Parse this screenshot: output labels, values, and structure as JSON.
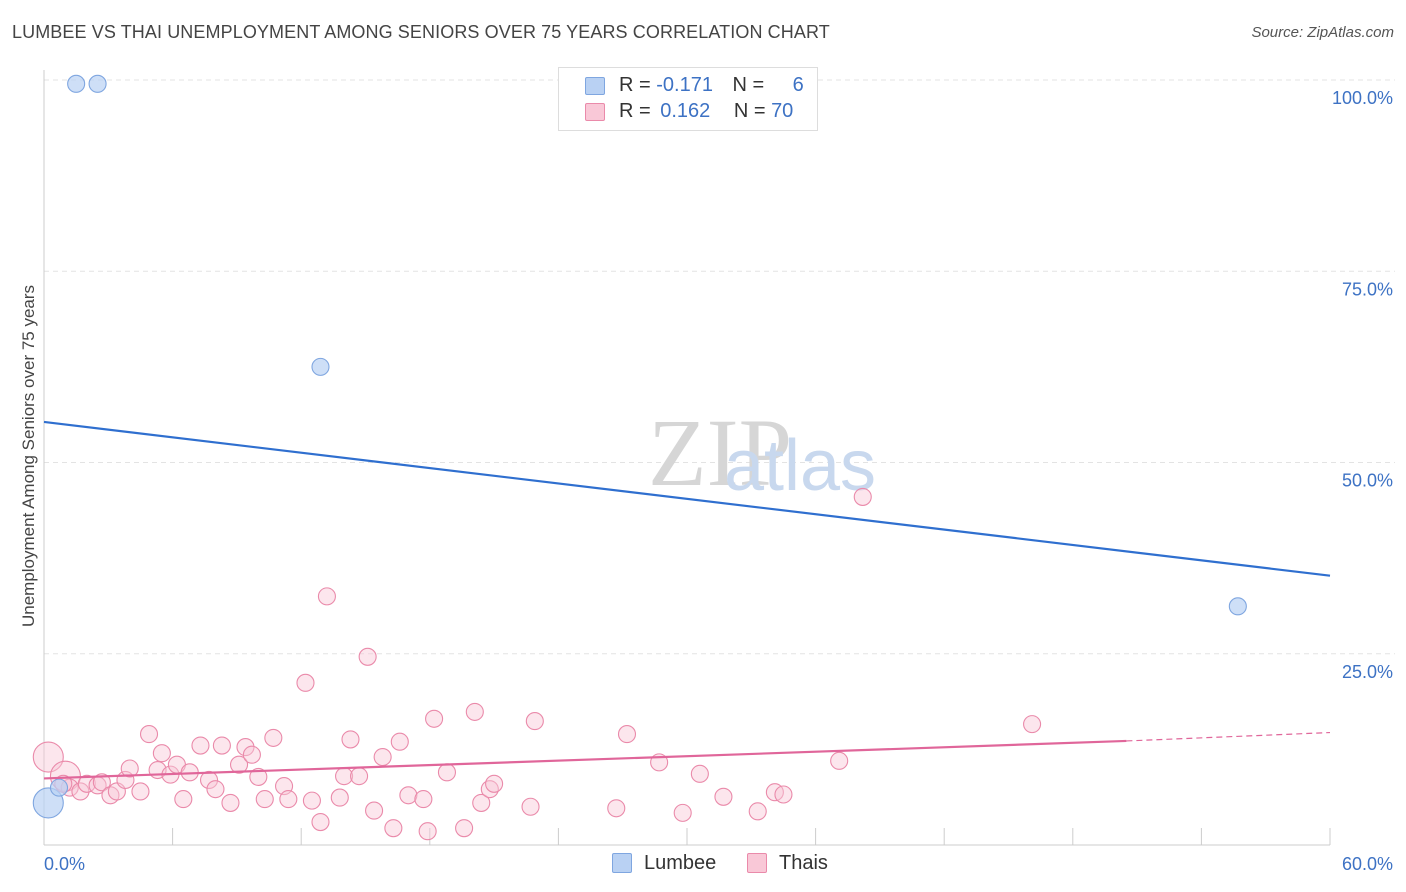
{
  "title": "LUMBEE VS THAI UNEMPLOYMENT AMONG SENIORS OVER 75 YEARS CORRELATION CHART",
  "source": "Source: ZipAtlas.com",
  "watermark": {
    "zip": "ZIP",
    "atlas": "atlas"
  },
  "colors": {
    "lumbee_fill": "#b9d1f3",
    "lumbee_stroke": "#7fa6e0",
    "lumbee_line": "#2f6fcf",
    "thai_fill": "#f9c8d7",
    "thai_stroke": "#ea8aaa",
    "thai_line": "#e0669a",
    "tick_label": "#3d72c4",
    "grid": "#e3e3e3"
  },
  "legend": {
    "rows": [
      {
        "r_label": "R = ",
        "r_value": "-0.171",
        "n_label": "N = ",
        "n_value": "6"
      },
      {
        "r_label": "R = ",
        "r_value": "0.162",
        "n_label": "N = ",
        "n_value": "70"
      }
    ]
  },
  "chart_data": {
    "type": "scatter",
    "title": "LUMBEE VS THAI UNEMPLOYMENT AMONG SENIORS OVER 75 YEARS CORRELATION CHART",
    "xlabel": "",
    "ylabel": "Unemployment Among Seniors over 75 years",
    "xlim": [
      0,
      60
    ],
    "ylim": [
      0,
      100
    ],
    "x_tick_labels": [
      "0.0%",
      "60.0%"
    ],
    "y_ticks": [
      25,
      50,
      75,
      100
    ],
    "y_tick_labels": [
      "25.0%",
      "50.0%",
      "75.0%",
      "100.0%"
    ],
    "grid": true,
    "legend_position": "top-center",
    "series": [
      {
        "name": "Lumbee",
        "r": -0.171,
        "n": 6,
        "trend": {
          "x": [
            0,
            60
          ],
          "y": [
            55.3,
            35.2
          ]
        },
        "points": [
          {
            "x": 0.2,
            "y": 5.5,
            "s": 2
          },
          {
            "x": 0.7,
            "y": 7.5,
            "s": 1
          },
          {
            "x": 1.5,
            "y": 99.5,
            "s": 1
          },
          {
            "x": 2.5,
            "y": 99.5,
            "s": 1
          },
          {
            "x": 12.9,
            "y": 62.5,
            "s": 1
          },
          {
            "x": 55.7,
            "y": 31.2,
            "s": 1
          }
        ]
      },
      {
        "name": "Thais",
        "r": 0.162,
        "n": 70,
        "trend": {
          "x": [
            0,
            50.5
          ],
          "y": [
            8.7,
            13.6
          ]
        },
        "trend_dashed": {
          "x": [
            50.5,
            60
          ],
          "y": [
            13.6,
            14.7
          ]
        },
        "points": [
          {
            "x": 0.2,
            "y": 11.5,
            "s": 2
          },
          {
            "x": 1.0,
            "y": 9.0,
            "s": 2
          },
          {
            "x": 1.2,
            "y": 7.5,
            "s": 1
          },
          {
            "x": 0.9,
            "y": 8.0,
            "s": 1
          },
          {
            "x": 1.7,
            "y": 7.0,
            "s": 1
          },
          {
            "x": 2.0,
            "y": 8.0,
            "s": 1
          },
          {
            "x": 2.5,
            "y": 7.8,
            "s": 1
          },
          {
            "x": 2.7,
            "y": 8.2,
            "s": 1
          },
          {
            "x": 3.1,
            "y": 6.5,
            "s": 1
          },
          {
            "x": 3.4,
            "y": 7.0,
            "s": 1
          },
          {
            "x": 3.8,
            "y": 8.5,
            "s": 1
          },
          {
            "x": 4.0,
            "y": 10.0,
            "s": 1
          },
          {
            "x": 4.5,
            "y": 7.0,
            "s": 1
          },
          {
            "x": 4.9,
            "y": 14.5,
            "s": 1
          },
          {
            "x": 5.3,
            "y": 9.8,
            "s": 1
          },
          {
            "x": 5.5,
            "y": 12.0,
            "s": 1
          },
          {
            "x": 5.9,
            "y": 9.2,
            "s": 1
          },
          {
            "x": 6.2,
            "y": 10.5,
            "s": 1
          },
          {
            "x": 6.5,
            "y": 6.0,
            "s": 1
          },
          {
            "x": 6.8,
            "y": 9.5,
            "s": 1
          },
          {
            "x": 7.3,
            "y": 13.0,
            "s": 1
          },
          {
            "x": 7.7,
            "y": 8.5,
            "s": 1
          },
          {
            "x": 8.0,
            "y": 7.3,
            "s": 1
          },
          {
            "x": 8.3,
            "y": 13.0,
            "s": 1
          },
          {
            "x": 8.7,
            "y": 5.5,
            "s": 1
          },
          {
            "x": 9.1,
            "y": 10.5,
            "s": 1
          },
          {
            "x": 9.4,
            "y": 12.8,
            "s": 1
          },
          {
            "x": 9.7,
            "y": 11.8,
            "s": 1
          },
          {
            "x": 10.0,
            "y": 8.9,
            "s": 1
          },
          {
            "x": 10.3,
            "y": 6.0,
            "s": 1
          },
          {
            "x": 10.7,
            "y": 14.0,
            "s": 1
          },
          {
            "x": 11.2,
            "y": 7.7,
            "s": 1
          },
          {
            "x": 11.4,
            "y": 6.0,
            "s": 1
          },
          {
            "x": 12.2,
            "y": 21.2,
            "s": 1
          },
          {
            "x": 12.5,
            "y": 5.8,
            "s": 1
          },
          {
            "x": 12.9,
            "y": 3.0,
            "s": 1
          },
          {
            "x": 13.2,
            "y": 32.5,
            "s": 1
          },
          {
            "x": 13.8,
            "y": 6.2,
            "s": 1
          },
          {
            "x": 14.0,
            "y": 9.0,
            "s": 1
          },
          {
            "x": 14.3,
            "y": 13.8,
            "s": 1
          },
          {
            "x": 14.7,
            "y": 9.0,
            "s": 1
          },
          {
            "x": 15.1,
            "y": 24.6,
            "s": 1
          },
          {
            "x": 15.4,
            "y": 4.5,
            "s": 1
          },
          {
            "x": 15.8,
            "y": 11.5,
            "s": 1
          },
          {
            "x": 16.3,
            "y": 2.2,
            "s": 1
          },
          {
            "x": 16.6,
            "y": 13.5,
            "s": 1
          },
          {
            "x": 17.0,
            "y": 6.5,
            "s": 1
          },
          {
            "x": 17.7,
            "y": 6.0,
            "s": 1
          },
          {
            "x": 17.9,
            "y": 1.8,
            "s": 1
          },
          {
            "x": 18.2,
            "y": 16.5,
            "s": 1
          },
          {
            "x": 18.8,
            "y": 9.5,
            "s": 1
          },
          {
            "x": 19.6,
            "y": 2.2,
            "s": 1
          },
          {
            "x": 20.1,
            "y": 17.4,
            "s": 1
          },
          {
            "x": 20.4,
            "y": 5.5,
            "s": 1
          },
          {
            "x": 20.8,
            "y": 7.3,
            "s": 1
          },
          {
            "x": 21.0,
            "y": 8.0,
            "s": 1
          },
          {
            "x": 22.7,
            "y": 5.0,
            "s": 1
          },
          {
            "x": 22.9,
            "y": 16.2,
            "s": 1
          },
          {
            "x": 26.7,
            "y": 4.8,
            "s": 1
          },
          {
            "x": 27.2,
            "y": 14.5,
            "s": 1
          },
          {
            "x": 28.7,
            "y": 10.8,
            "s": 1
          },
          {
            "x": 29.8,
            "y": 4.2,
            "s": 1
          },
          {
            "x": 30.6,
            "y": 9.3,
            "s": 1
          },
          {
            "x": 31.7,
            "y": 6.3,
            "s": 1
          },
          {
            "x": 33.3,
            "y": 4.4,
            "s": 1
          },
          {
            "x": 34.1,
            "y": 6.9,
            "s": 1
          },
          {
            "x": 34.5,
            "y": 6.6,
            "s": 1
          },
          {
            "x": 37.1,
            "y": 11.0,
            "s": 1
          },
          {
            "x": 38.2,
            "y": 45.5,
            "s": 1
          },
          {
            "x": 46.1,
            "y": 15.8,
            "s": 1
          }
        ]
      }
    ]
  }
}
